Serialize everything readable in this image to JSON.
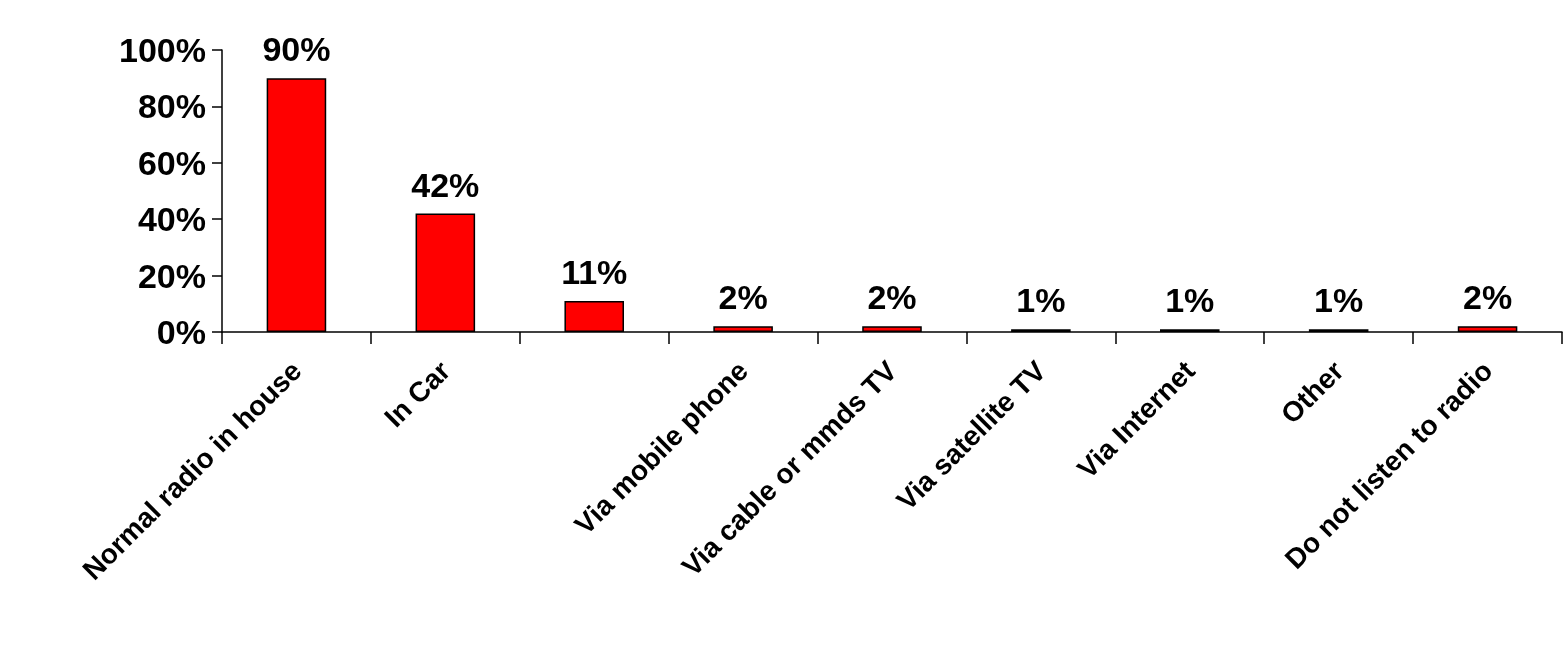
{
  "chart_data": {
    "type": "bar",
    "categories": [
      "Normal radio in house",
      "In Car",
      null,
      "Via mobile phone",
      "Via cable or mmds TV",
      "Via satellite TV",
      "Via Internet",
      "Other",
      "Do not listen to radio"
    ],
    "values": [
      90,
      42,
      11,
      2,
      2,
      1,
      1,
      1,
      2
    ],
    "value_labels": [
      "90%",
      "42%",
      "11%",
      "2%",
      "2%",
      "1%",
      "1%",
      "1%",
      "2%"
    ],
    "color": "#ff0000",
    "ylim": [
      0,
      100
    ],
    "yticks": [
      {
        "value": 0,
        "label": "0%"
      },
      {
        "value": 20,
        "label": "20%"
      },
      {
        "value": 40,
        "label": "40%"
      },
      {
        "value": 60,
        "label": "60%"
      },
      {
        "value": 80,
        "label": "80%"
      },
      {
        "value": 100,
        "label": "100%"
      }
    ],
    "grid": false
  }
}
